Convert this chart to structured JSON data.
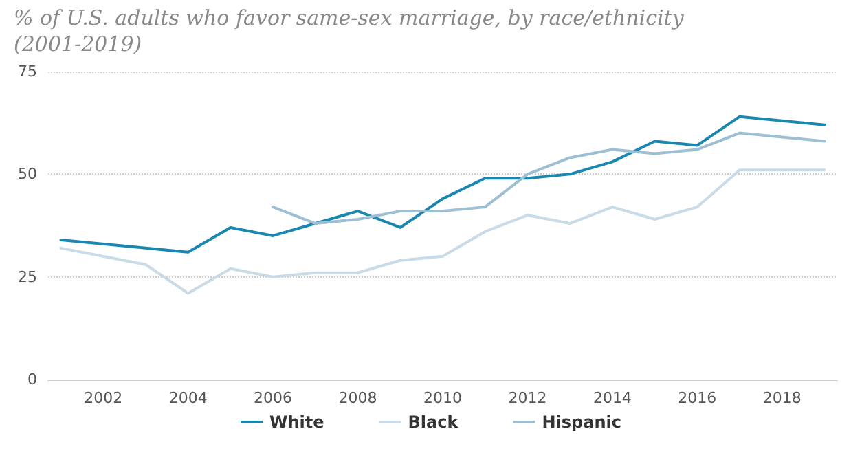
{
  "chart_data": {
    "type": "line",
    "title": "% of U.S. adults who favor same-sex marriage, by race/ethnicity (2001-2019)",
    "xlim": [
      2000.7,
      2019.3
    ],
    "xticks": [
      2002,
      2004,
      2006,
      2008,
      2010,
      2012,
      2014,
      2016,
      2018
    ],
    "ylim": [
      0,
      75
    ],
    "yticks": [
      0,
      25,
      50,
      75
    ],
    "grid": "y",
    "legend": "bottom",
    "marker": "none",
    "series": [
      {
        "name": "White",
        "color": "#1a87b0",
        "x": [
          2001,
          2003,
          2004,
          2005,
          2006,
          2007,
          2008,
          2009,
          2010,
          2011,
          2012,
          2013,
          2014,
          2015,
          2016,
          2017,
          2019
        ],
        "values": [
          34,
          32,
          31,
          37,
          35,
          38,
          41,
          37,
          44,
          49,
          49,
          50,
          53,
          58,
          57,
          64,
          62
        ]
      },
      {
        "name": "Black",
        "color": "#c8dbe6",
        "x": [
          2001,
          2003,
          2004,
          2005,
          2006,
          2007,
          2008,
          2009,
          2010,
          2011,
          2012,
          2013,
          2014,
          2015,
          2016,
          2017,
          2019
        ],
        "values": [
          32,
          28,
          21,
          27,
          25,
          26,
          26,
          29,
          30,
          36,
          40,
          38,
          42,
          39,
          42,
          51,
          51
        ]
      },
      {
        "name": "Hispanic",
        "color": "#9dbfd4",
        "x": [
          2006,
          2007,
          2008,
          2009,
          2010,
          2011,
          2012,
          2013,
          2014,
          2015,
          2016,
          2017,
          2019
        ],
        "values": [
          42,
          38,
          39,
          41,
          41,
          42,
          50,
          54,
          56,
          55,
          56,
          60,
          58
        ]
      }
    ]
  }
}
